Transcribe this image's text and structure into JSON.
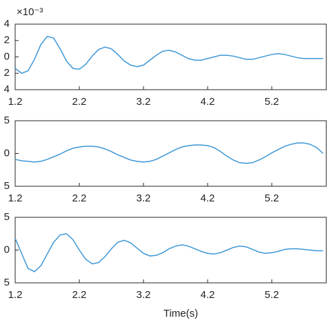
{
  "chart_data": [
    {
      "type": "line",
      "exponent_label": "×10⁻³",
      "xlim": [
        1.2,
        6.05
      ],
      "xticks": [
        1.2,
        2.2,
        3.2,
        4.2,
        5.2
      ],
      "ylim": [
        -4,
        4
      ],
      "yticks": [
        {
          "value": -4,
          "label": "4"
        },
        {
          "value": -2,
          "label": "2"
        },
        0,
        2,
        4
      ],
      "x": [
        1.2,
        1.3,
        1.4,
        1.5,
        1.6,
        1.7,
        1.8,
        1.9,
        2.0,
        2.1,
        2.2,
        2.3,
        2.4,
        2.5,
        2.6,
        2.7,
        2.8,
        2.9,
        3.0,
        3.1,
        3.2,
        3.3,
        3.4,
        3.5,
        3.6,
        3.7,
        3.8,
        3.9,
        4.0,
        4.1,
        4.2,
        4.3,
        4.4,
        4.5,
        4.6,
        4.7,
        4.8,
        4.9,
        5.0,
        5.1,
        5.2,
        5.3,
        5.4,
        5.5,
        5.6,
        5.7,
        5.8,
        5.9,
        6.0
      ],
      "series": [
        {
          "color": "#3d97d6",
          "values": [
            -1.4,
            -2.0,
            -1.7,
            -0.3,
            1.5,
            2.5,
            2.3,
            1.0,
            -0.5,
            -1.4,
            -1.5,
            -0.9,
            0.1,
            0.9,
            1.2,
            1.0,
            0.3,
            -0.5,
            -1.0,
            -1.2,
            -1.0,
            -0.4,
            0.2,
            0.7,
            0.8,
            0.6,
            0.2,
            -0.2,
            -0.4,
            -0.4,
            -0.2,
            0.0,
            0.2,
            0.2,
            0.1,
            -0.1,
            -0.3,
            -0.3,
            -0.1,
            0.1,
            0.3,
            0.4,
            0.3,
            0.1,
            -0.1,
            -0.2,
            -0.2,
            -0.2,
            -0.2
          ]
        }
      ]
    },
    {
      "type": "line",
      "xlim": [
        1.2,
        6.05
      ],
      "xticks": [
        1.2,
        2.2,
        3.2,
        4.2,
        5.2
      ],
      "ylim": [
        -5,
        5
      ],
      "yticks": [
        {
          "value": -5,
          "label": "5"
        },
        0,
        5
      ],
      "x": [
        1.2,
        1.3,
        1.4,
        1.5,
        1.6,
        1.7,
        1.8,
        1.9,
        2.0,
        2.1,
        2.2,
        2.3,
        2.4,
        2.5,
        2.6,
        2.7,
        2.8,
        2.9,
        3.0,
        3.1,
        3.2,
        3.3,
        3.4,
        3.5,
        3.6,
        3.7,
        3.8,
        3.9,
        4.0,
        4.1,
        4.2,
        4.3,
        4.4,
        4.5,
        4.6,
        4.7,
        4.8,
        4.9,
        5.0,
        5.1,
        5.2,
        5.3,
        5.4,
        5.5,
        5.6,
        5.7,
        5.8,
        5.9,
        6.0
      ],
      "series": [
        {
          "color": "#3d97d6",
          "values": [
            -0.9,
            -1.1,
            -1.2,
            -1.3,
            -1.2,
            -0.9,
            -0.5,
            -0.1,
            0.4,
            0.8,
            1.0,
            1.1,
            1.1,
            1.0,
            0.7,
            0.3,
            -0.2,
            -0.6,
            -1.0,
            -1.2,
            -1.3,
            -1.2,
            -0.9,
            -0.4,
            0.1,
            0.6,
            1.0,
            1.2,
            1.3,
            1.3,
            1.2,
            0.9,
            0.3,
            -0.4,
            -1.0,
            -1.4,
            -1.5,
            -1.4,
            -1.0,
            -0.5,
            0.1,
            0.6,
            1.1,
            1.4,
            1.6,
            1.6,
            1.4,
            0.9,
            0.0
          ]
        }
      ]
    },
    {
      "type": "line",
      "x_label": "Time(s)",
      "xlim": [
        1.2,
        6.05
      ],
      "xticks": [
        1.2,
        2.2,
        3.2,
        4.2,
        5.2
      ],
      "ylim": [
        -5,
        5
      ],
      "yticks": [
        {
          "value": -5,
          "label": "5"
        },
        0,
        5
      ],
      "x": [
        1.2,
        1.3,
        1.4,
        1.5,
        1.6,
        1.7,
        1.8,
        1.9,
        2.0,
        2.1,
        2.2,
        2.3,
        2.4,
        2.5,
        2.6,
        2.7,
        2.8,
        2.9,
        3.0,
        3.1,
        3.2,
        3.3,
        3.4,
        3.5,
        3.6,
        3.7,
        3.8,
        3.9,
        4.0,
        4.1,
        4.2,
        4.3,
        4.4,
        4.5,
        4.6,
        4.7,
        4.8,
        4.9,
        5.0,
        5.1,
        5.2,
        5.3,
        5.4,
        5.5,
        5.6,
        5.7,
        5.8,
        5.9,
        6.0
      ],
      "series": [
        {
          "color": "#3d97d6",
          "values": [
            1.8,
            -0.5,
            -2.8,
            -3.3,
            -2.4,
            -0.6,
            1.2,
            2.3,
            2.5,
            1.6,
            0.0,
            -1.4,
            -2.1,
            -1.9,
            -1.0,
            0.2,
            1.2,
            1.5,
            1.1,
            0.3,
            -0.5,
            -0.9,
            -0.8,
            -0.4,
            0.2,
            0.6,
            0.8,
            0.6,
            0.2,
            -0.2,
            -0.5,
            -0.6,
            -0.4,
            0.0,
            0.4,
            0.6,
            0.5,
            0.1,
            -0.3,
            -0.5,
            -0.4,
            -0.2,
            0.1,
            0.2,
            0.2,
            0.1,
            0.0,
            -0.1,
            -0.1
          ]
        }
      ]
    }
  ]
}
